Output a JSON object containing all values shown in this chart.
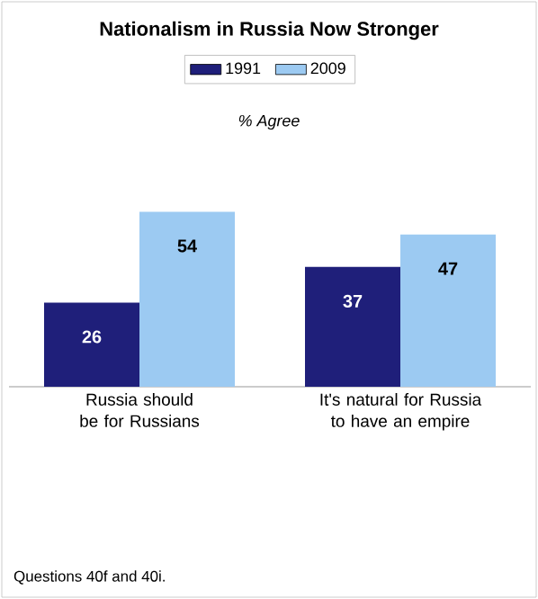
{
  "chart_data": {
    "type": "bar",
    "title": "Nationalism in Russia Now Stronger",
    "subtitle": "% Agree",
    "categories": [
      "Russia should be for Russians",
      "It's natural for Russia to have an empire"
    ],
    "series": [
      {
        "name": "1991",
        "color": "#1f1f7a",
        "values": [
          26,
          37
        ]
      },
      {
        "name": "2009",
        "color": "#9ccaf2",
        "values": [
          54,
          47
        ]
      }
    ],
    "data_labels": true,
    "legend": "top",
    "annotations": [
      "Questions 40f and 40i."
    ]
  }
}
